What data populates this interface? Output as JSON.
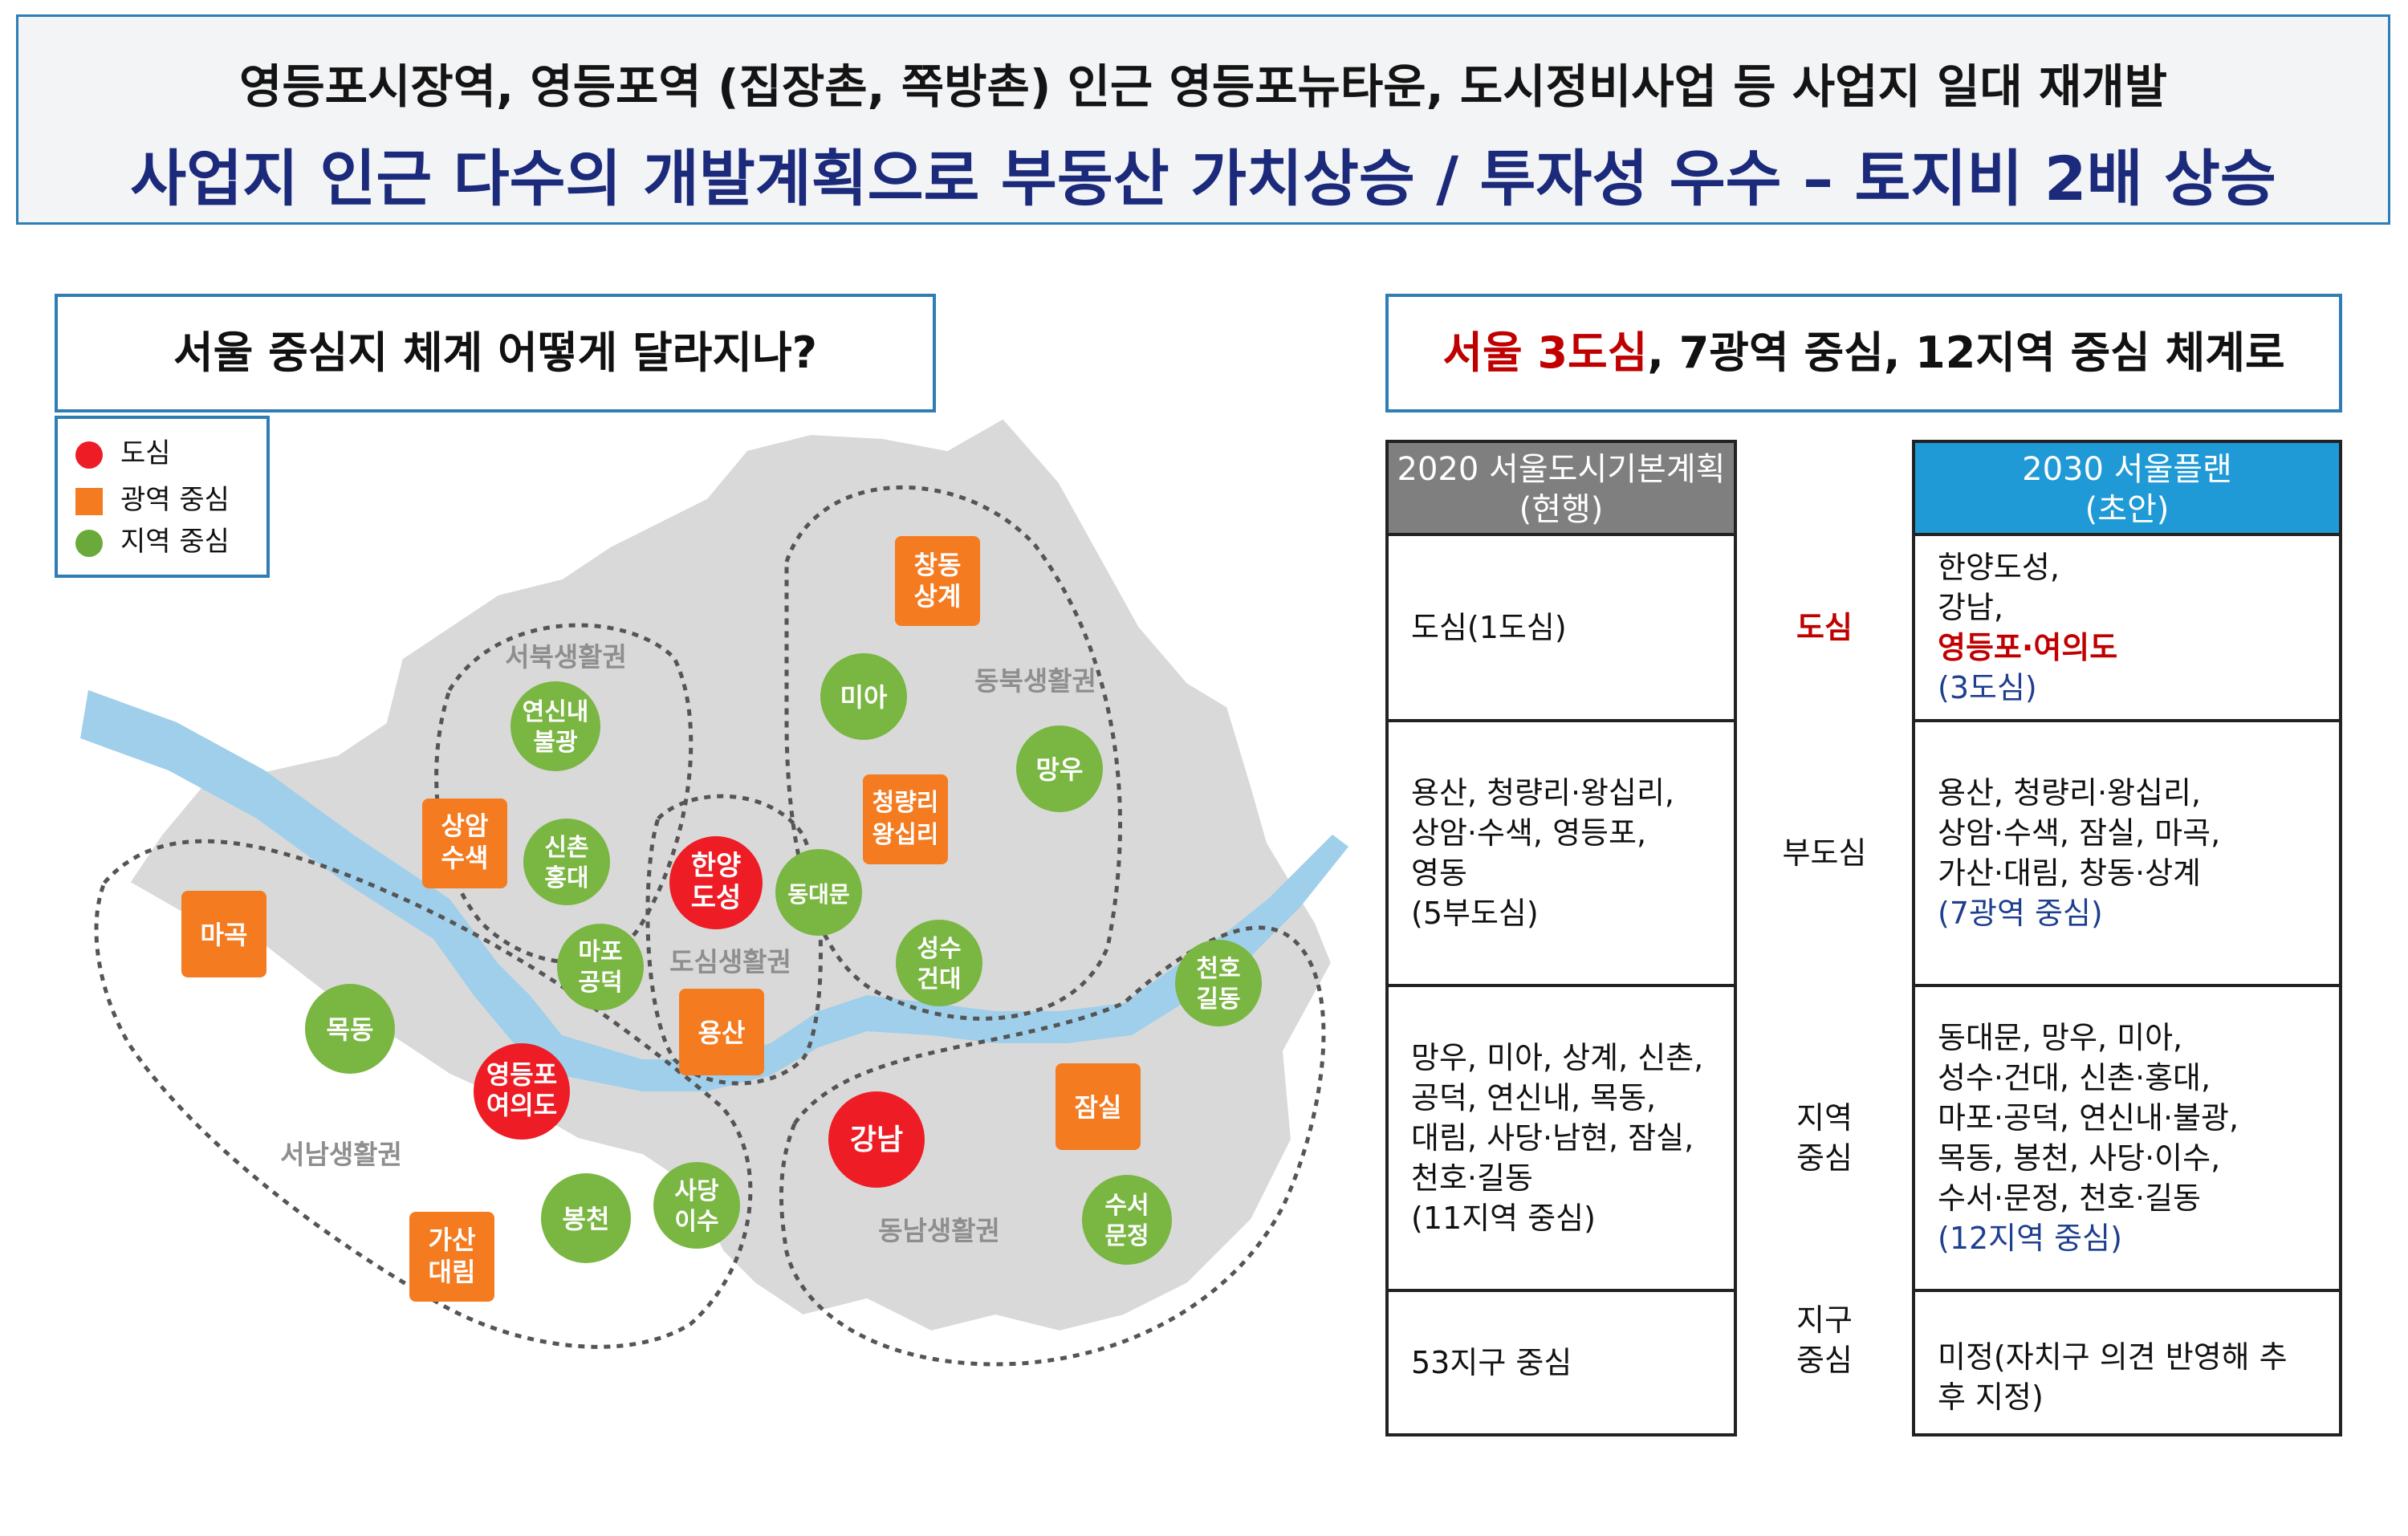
{
  "header": {
    "line1": "영등포시장역, 영등포역 (집장촌, 쪽방촌) 인근 영등포뉴타운, 도시정비사업 등 사업지 일대 재개발",
    "line2": "사업지 인근 다수의 개발계획으로 부동산 가치상승 / 투자성 우수 – 토지비 2배 상승"
  },
  "left_box": {
    "title": "서울 중심지 체계 어떻게 달라지나?"
  },
  "legend": [
    {
      "label": "도심",
      "color": "#ee1c25",
      "shape": "circle"
    },
    {
      "label": "광역 중심",
      "color": "#f47b20",
      "shape": "square"
    },
    {
      "label": "지역 중심",
      "color": "#6aaa3a",
      "shape": "circle"
    }
  ],
  "map": {
    "regions": [
      "서북생활권",
      "동북생활권",
      "도심생활권",
      "서남생활권",
      "동남생활권"
    ],
    "centers": {
      "red": [
        [
          "한양",
          "도성"
        ],
        [
          "영등포",
          "여의도"
        ],
        [
          "강남"
        ]
      ],
      "orange": [
        [
          "창동",
          "상계"
        ],
        [
          "청량리",
          "왕십리"
        ],
        [
          "상암",
          "수색"
        ],
        [
          "마곡"
        ],
        [
          "용산"
        ],
        [
          "잠실"
        ],
        [
          "가산",
          "대림"
        ]
      ],
      "green": [
        [
          "미아"
        ],
        [
          "망우"
        ],
        [
          "연신내",
          "불광"
        ],
        [
          "신촌",
          "홍대"
        ],
        [
          "동대문"
        ],
        [
          "마포",
          "공덕"
        ],
        [
          "성수",
          "건대"
        ],
        [
          "천호",
          "길동"
        ],
        [
          "목동"
        ],
        [
          "봉천"
        ],
        [
          "사당",
          "이수"
        ],
        [
          "수서",
          "문정"
        ]
      ]
    },
    "colors": {
      "land": "#d9d9d9",
      "river": "#9fcfea",
      "red": "#ee1c25",
      "orange": "#f47b20",
      "green": "#7ab642"
    }
  },
  "right_box": {
    "title_red": "서울 3도심",
    "title_rest": ", 7광역 중심, 12지역 중심 체계로"
  },
  "table": {
    "head_left": [
      "2020 서울도시기본계획",
      "(현행)"
    ],
    "head_right": [
      "2030 서울플랜",
      "(초안)"
    ],
    "rows": [
      {
        "left": [
          "도심(1도심)"
        ],
        "mid": [
          "도심"
        ],
        "right": [
          "한양도성,",
          "강남,"
        ],
        "right_red": "영등포·여의도",
        "right_note": "(3도심)"
      },
      {
        "left": [
          "용산, 청량리·왕십리,",
          "상암·수색, 영등포,",
          "영동",
          "(5부도심)"
        ],
        "mid": [
          "부도심"
        ],
        "right": [
          "용산, 청량리·왕십리,",
          "상암·수색, 잠실, 마곡,",
          "가산·대림, 창동·상계"
        ],
        "right_note": "(7광역 중심)"
      },
      {
        "left": [
          "망우, 미아, 상계, 신촌,",
          "공덕, 연신내, 목동,",
          "대림, 사당·남현, 잠실,",
          "천호·길동",
          "(11지역 중심)"
        ],
        "mid": [
          "지역",
          "중심"
        ],
        "right": [
          "동대문, 망우, 미아,",
          "성수·건대, 신촌·홍대,",
          "마포·공덕, 연신내·불광,",
          "목동, 봉천, 사당·이수,",
          "수서·문정, 천호·길동"
        ],
        "right_note": "(12지역 중심)"
      },
      {
        "left": [
          "53지구 중심"
        ],
        "mid": [
          "지구",
          "중심"
        ],
        "right": [
          "미정(자치구 의견 반영해 추",
          "후 지정)"
        ]
      }
    ]
  }
}
